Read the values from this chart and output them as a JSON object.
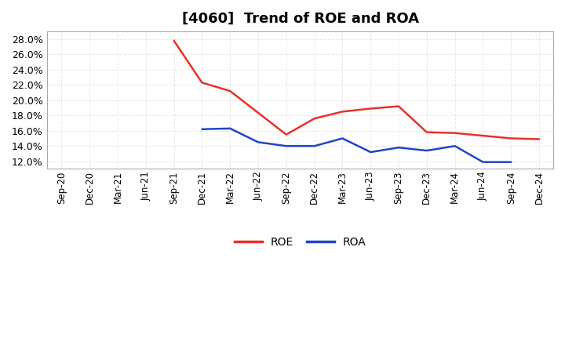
{
  "title": "[4060]  Trend of ROE and ROA",
  "x_labels": [
    "Sep-20",
    "Dec-20",
    "Mar-21",
    "Jun-21",
    "Sep-21",
    "Dec-21",
    "Mar-22",
    "Jun-22",
    "Sep-22",
    "Dec-22",
    "Mar-23",
    "Jun-23",
    "Sep-23",
    "Dec-23",
    "Mar-24",
    "Jun-24",
    "Sep-24",
    "Dec-24"
  ],
  "roe_values": [
    null,
    null,
    null,
    null,
    27.8,
    22.3,
    21.2,
    null,
    15.5,
    17.6,
    18.5,
    18.9,
    19.2,
    15.8,
    15.7,
    null,
    15.0,
    14.9
  ],
  "roa_values": [
    null,
    null,
    null,
    null,
    null,
    16.2,
    16.3,
    14.5,
    14.0,
    14.0,
    15.0,
    13.2,
    13.8,
    13.4,
    14.0,
    11.9,
    11.9,
    null
  ],
  "roe_color": "#e8312a",
  "roa_color": "#2145c8",
  "ylim": [
    11.0,
    29.0
  ],
  "yticks": [
    12.0,
    14.0,
    16.0,
    18.0,
    20.0,
    22.0,
    24.0,
    26.0,
    28.0
  ],
  "background_color": "#ffffff",
  "grid_color": "#c8c8c8",
  "line_width": 1.8,
  "title_fontsize": 13,
  "tick_fontsize": 8.5,
  "legend_fontsize": 10
}
